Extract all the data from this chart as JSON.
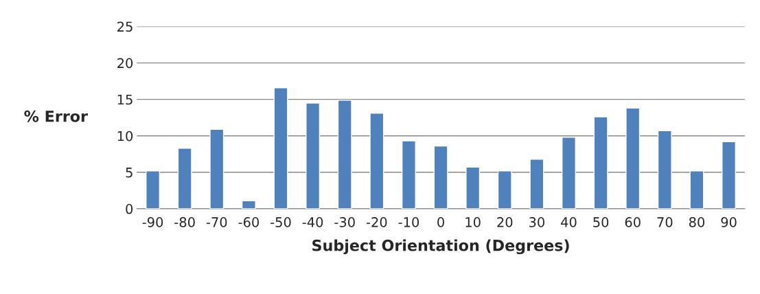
{
  "chart_data": {
    "type": "bar",
    "categories": [
      "-90",
      "-80",
      "-70",
      "-60",
      "-50",
      "-40",
      "-30",
      "-20",
      "-10",
      "0",
      "10",
      "20",
      "30",
      "40",
      "50",
      "60",
      "70",
      "80",
      "90"
    ],
    "values": [
      5.2,
      8.3,
      10.9,
      1.1,
      16.6,
      14.5,
      14.9,
      13.1,
      9.3,
      8.6,
      5.7,
      5.2,
      6.8,
      9.8,
      12.6,
      13.8,
      10.7,
      5.2,
      9.2
    ],
    "color": "#4f81bd",
    "xlabel": "Subject Orientation (Degrees)",
    "ylabel": "% Error",
    "ylim": [
      0,
      25
    ],
    "yticks": [
      0,
      5,
      10,
      15,
      20,
      25
    ],
    "grid": "y"
  }
}
